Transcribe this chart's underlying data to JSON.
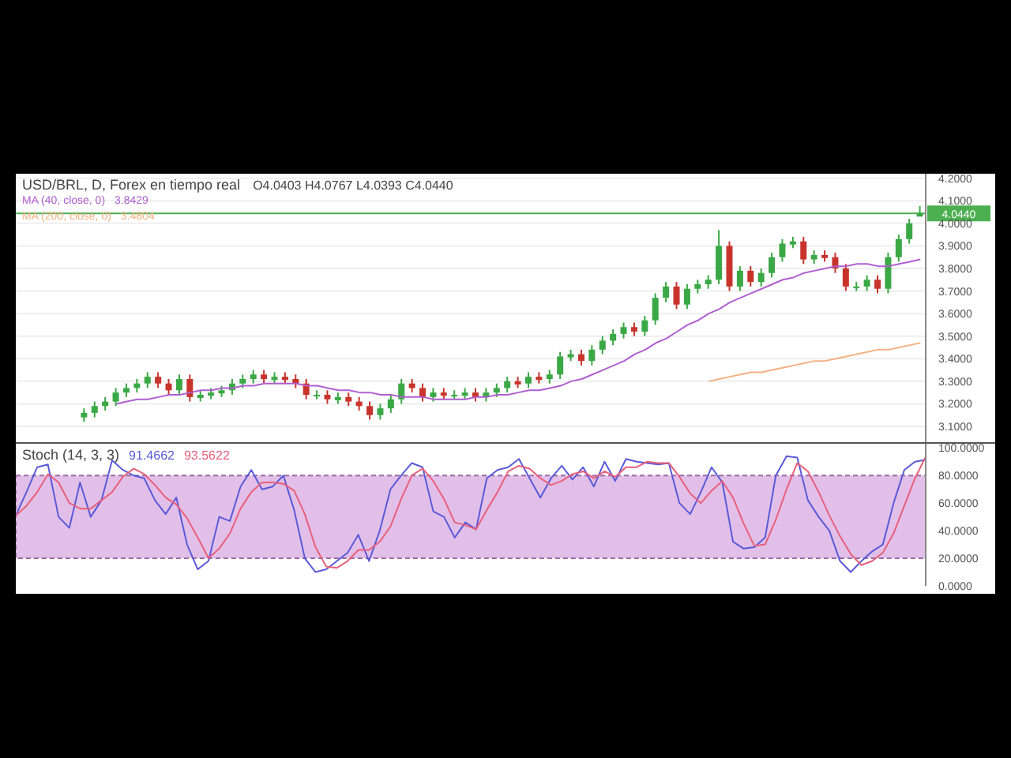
{
  "chart_data": [
    {
      "type": "candlestick",
      "title": "USD/BRL, D, Forex en tiempo real",
      "annotations": [
        "O4.0403 H4.0767 L4.0393 C4.0440",
        "3.8429",
        "3.4804"
      ],
      "categories": [
        null,
        null,
        null,
        null,
        null,
        null,
        null,
        null,
        null,
        null,
        null,
        null,
        null,
        null,
        null,
        null,
        null,
        null,
        null,
        null,
        null,
        null,
        null,
        null,
        null,
        null,
        null,
        null,
        null,
        null,
        null,
        null,
        null,
        null,
        null,
        null,
        null,
        null,
        null,
        null,
        null,
        null,
        null,
        null,
        null,
        null,
        null,
        null,
        null,
        null,
        null,
        null,
        null,
        null,
        null,
        null,
        null,
        null,
        null,
        null,
        null,
        null,
        null,
        null,
        null,
        null,
        null,
        null,
        null,
        null,
        null,
        null,
        null,
        null,
        null,
        null,
        null,
        null,
        null,
        null,
        null,
        null,
        null,
        null,
        null,
        null
      ],
      "ohlc": [
        null,
        null,
        null,
        null,
        null,
        null,
        [
          3.14,
          3.18,
          3.12,
          3.16
        ],
        [
          3.16,
          3.21,
          3.14,
          3.19
        ],
        [
          3.19,
          3.23,
          3.17,
          3.21
        ],
        [
          3.21,
          3.27,
          3.19,
          3.25
        ],
        [
          3.25,
          3.29,
          3.23,
          3.27
        ],
        [
          3.27,
          3.31,
          3.25,
          3.29
        ],
        [
          3.29,
          3.34,
          3.27,
          3.32
        ],
        [
          3.32,
          3.34,
          3.27,
          3.29
        ],
        [
          3.29,
          3.31,
          3.24,
          3.26
        ],
        [
          3.26,
          3.33,
          3.24,
          3.31
        ],
        [
          3.31,
          3.33,
          3.21,
          3.23
        ],
        [
          3.23,
          3.26,
          3.21,
          3.24
        ],
        [
          3.24,
          3.27,
          3.22,
          3.25
        ],
        [
          3.25,
          3.28,
          3.23,
          3.26
        ],
        [
          3.26,
          3.31,
          3.24,
          3.29
        ],
        [
          3.29,
          3.33,
          3.27,
          3.31
        ],
        [
          3.31,
          3.35,
          3.29,
          3.33
        ],
        [
          3.33,
          3.35,
          3.29,
          3.31
        ],
        [
          3.31,
          3.34,
          3.29,
          3.32
        ],
        [
          3.32,
          3.34,
          3.29,
          3.31
        ],
        [
          3.31,
          3.33,
          3.27,
          3.29
        ],
        [
          3.29,
          3.31,
          3.22,
          3.24
        ],
        [
          3.24,
          3.26,
          3.22,
          3.24
        ],
        [
          3.24,
          3.26,
          3.2,
          3.22
        ],
        [
          3.22,
          3.25,
          3.2,
          3.23
        ],
        [
          3.23,
          3.25,
          3.19,
          3.21
        ],
        [
          3.21,
          3.23,
          3.17,
          3.19
        ],
        [
          3.19,
          3.21,
          3.13,
          3.15
        ],
        [
          3.15,
          3.2,
          3.13,
          3.18
        ],
        [
          3.18,
          3.24,
          3.16,
          3.22
        ],
        [
          3.22,
          3.31,
          3.2,
          3.29
        ],
        [
          3.29,
          3.31,
          3.25,
          3.27
        ],
        [
          3.27,
          3.29,
          3.21,
          3.23
        ],
        [
          3.23,
          3.27,
          3.21,
          3.25
        ],
        [
          3.25,
          3.27,
          3.22,
          3.24
        ],
        [
          3.24,
          3.26,
          3.22,
          3.24
        ],
        [
          3.24,
          3.27,
          3.22,
          3.25
        ],
        [
          3.25,
          3.27,
          3.21,
          3.23
        ],
        [
          3.23,
          3.27,
          3.21,
          3.25
        ],
        [
          3.25,
          3.29,
          3.23,
          3.27
        ],
        [
          3.27,
          3.32,
          3.25,
          3.3
        ],
        [
          3.3,
          3.32,
          3.27,
          3.29
        ],
        [
          3.29,
          3.34,
          3.27,
          3.32
        ],
        [
          3.32,
          3.34,
          3.29,
          3.31
        ],
        [
          3.31,
          3.35,
          3.29,
          3.33
        ],
        [
          3.33,
          3.43,
          3.31,
          3.41
        ],
        [
          3.41,
          3.44,
          3.39,
          3.42
        ],
        [
          3.42,
          3.44,
          3.37,
          3.39
        ],
        [
          3.39,
          3.46,
          3.37,
          3.44
        ],
        [
          3.44,
          3.5,
          3.42,
          3.48
        ],
        [
          3.48,
          3.53,
          3.46,
          3.51
        ],
        [
          3.51,
          3.56,
          3.49,
          3.54
        ],
        [
          3.54,
          3.56,
          3.5,
          3.52
        ],
        [
          3.52,
          3.59,
          3.5,
          3.57
        ],
        [
          3.57,
          3.69,
          3.55,
          3.67
        ],
        [
          3.67,
          3.74,
          3.65,
          3.72
        ],
        [
          3.72,
          3.74,
          3.62,
          3.64
        ],
        [
          3.64,
          3.73,
          3.62,
          3.71
        ],
        [
          3.71,
          3.75,
          3.69,
          3.73
        ],
        [
          3.73,
          3.77,
          3.71,
          3.75
        ],
        [
          3.75,
          3.97,
          3.73,
          3.9
        ],
        [
          3.9,
          3.92,
          3.7,
          3.72
        ],
        [
          3.72,
          3.81,
          3.7,
          3.79
        ],
        [
          3.79,
          3.81,
          3.72,
          3.74
        ],
        [
          3.74,
          3.8,
          3.72,
          3.78
        ],
        [
          3.78,
          3.87,
          3.76,
          3.85
        ],
        [
          3.85,
          3.93,
          3.83,
          3.91
        ],
        [
          3.91,
          3.94,
          3.89,
          3.92
        ],
        [
          3.92,
          3.94,
          3.82,
          3.84
        ],
        [
          3.84,
          3.88,
          3.82,
          3.86
        ],
        [
          3.86,
          3.88,
          3.83,
          3.85
        ],
        [
          3.85,
          3.87,
          3.78,
          3.8
        ],
        [
          3.8,
          3.82,
          3.7,
          3.72
        ],
        [
          3.72,
          3.74,
          3.7,
          3.72
        ],
        [
          3.72,
          3.77,
          3.7,
          3.75
        ],
        [
          3.75,
          3.77,
          3.69,
          3.71
        ],
        [
          3.71,
          3.87,
          3.69,
          3.85
        ],
        [
          3.85,
          3.95,
          3.83,
          3.93
        ],
        [
          3.93,
          4.02,
          3.91,
          4.0
        ],
        [
          4.0403,
          4.0767,
          4.0393,
          4.044
        ]
      ],
      "series": [
        {
          "name": "MA (40, close, 0)",
          "type": "line",
          "color": "#b05fd0",
          "values": [
            null,
            null,
            null,
            null,
            null,
            null,
            null,
            null,
            null,
            3.2,
            3.21,
            3.22,
            3.22,
            3.23,
            3.24,
            3.24,
            3.25,
            3.26,
            3.26,
            3.27,
            3.27,
            3.28,
            3.28,
            3.29,
            3.29,
            3.29,
            3.29,
            3.28,
            3.28,
            3.27,
            3.26,
            3.26,
            3.25,
            3.25,
            3.24,
            3.24,
            3.23,
            3.23,
            3.23,
            3.22,
            3.22,
            3.22,
            3.22,
            3.23,
            3.23,
            3.24,
            3.24,
            3.25,
            3.26,
            3.26,
            3.27,
            3.28,
            3.3,
            3.31,
            3.33,
            3.35,
            3.37,
            3.39,
            3.42,
            3.44,
            3.47,
            3.49,
            3.52,
            3.55,
            3.57,
            3.6,
            3.62,
            3.65,
            3.67,
            3.69,
            3.71,
            3.73,
            3.75,
            3.76,
            3.78,
            3.79,
            3.8,
            3.81,
            3.81,
            3.82,
            3.82,
            3.81,
            3.81,
            3.82,
            3.83,
            3.84
          ]
        },
        {
          "name": "MA (200, close, 0)",
          "type": "line",
          "color": "#f4b183",
          "values": [
            null,
            null,
            null,
            null,
            null,
            null,
            null,
            null,
            null,
            null,
            null,
            null,
            null,
            null,
            null,
            null,
            null,
            null,
            null,
            null,
            null,
            null,
            null,
            null,
            null,
            null,
            null,
            null,
            null,
            null,
            null,
            null,
            null,
            null,
            null,
            null,
            null,
            null,
            null,
            null,
            null,
            null,
            null,
            null,
            null,
            null,
            null,
            null,
            null,
            null,
            null,
            null,
            null,
            null,
            null,
            null,
            null,
            null,
            null,
            null,
            null,
            null,
            null,
            null,
            null,
            3.3,
            3.31,
            3.32,
            3.33,
            3.34,
            3.34,
            3.35,
            3.36,
            3.37,
            3.38,
            3.39,
            3.39,
            3.4,
            3.41,
            3.42,
            3.43,
            3.44,
            3.44,
            3.45,
            3.46,
            3.47
          ]
        }
      ],
      "ylim": [
        3.03,
        4.22
      ],
      "yticks": [
        {
          "value": 3.1,
          "label": "3.1000"
        },
        {
          "value": 3.2,
          "label": "3.2000"
        },
        {
          "value": 3.3,
          "label": "3.3000"
        },
        {
          "value": 3.4,
          "label": "3.4000"
        },
        {
          "value": 3.5,
          "label": "3.5000"
        },
        {
          "value": 3.6,
          "label": "3.6000"
        },
        {
          "value": 3.7,
          "label": "3.7000"
        },
        {
          "value": 3.8,
          "label": "3.8000"
        },
        {
          "value": 3.9,
          "label": "3.9000"
        },
        {
          "value": 4.0,
          "label": "4.0000"
        },
        {
          "value": 4.1,
          "label": "4.1000"
        },
        {
          "value": 4.2,
          "label": "4.2000"
        }
      ],
      "ref_lines": [
        {
          "axis": "y",
          "value": 4.044,
          "label": "4.0440",
          "color": "#4caf50"
        }
      ],
      "grid": "y",
      "legend": "top left"
    },
    {
      "type": "line",
      "title": "Stoch (14, 3, 3)",
      "annotations": [
        "91.4662",
        "93.5622"
      ],
      "categories": [
        null,
        null,
        null,
        null,
        null,
        null,
        null,
        null,
        null,
        null,
        null,
        null,
        null,
        null,
        null,
        null,
        null,
        null,
        null,
        null,
        null,
        null,
        null,
        null,
        null,
        null,
        null,
        null,
        null,
        null,
        null,
        null,
        null,
        null,
        null,
        null,
        null,
        null,
        null,
        null,
        null,
        null,
        null,
        null,
        null,
        null,
        null,
        null,
        null,
        null,
        null,
        null,
        null,
        null,
        null,
        null,
        null,
        null,
        null,
        null,
        null,
        null,
        null,
        null,
        null,
        null,
        null,
        null,
        null,
        null,
        null,
        null,
        null,
        null,
        null,
        null,
        null,
        null,
        null,
        null,
        null,
        null,
        null,
        null,
        null,
        null
      ],
      "series": [
        {
          "color": "#5a5ad8",
          "values": [
            51,
            68,
            86,
            88,
            50,
            42,
            75,
            50,
            62,
            91,
            84,
            80,
            78,
            62,
            52,
            64,
            30,
            12,
            18,
            50,
            47,
            72,
            84,
            70,
            72,
            80,
            55,
            20,
            10,
            12,
            18,
            24,
            37,
            18,
            40,
            70,
            80,
            89,
            86,
            54,
            50,
            35,
            46,
            41,
            78,
            84,
            86,
            92,
            78,
            64,
            78,
            87,
            77,
            86,
            72,
            90,
            76,
            92,
            90,
            89,
            88,
            89,
            60,
            52,
            68,
            86,
            75,
            32,
            27,
            28,
            35,
            80,
            94,
            93,
            62,
            50,
            40,
            18,
            10,
            18,
            25,
            30,
            60,
            84,
            90,
            91.4662
          ]
        },
        {
          "color": "#e8607a",
          "values": [
            51,
            58,
            68,
            81,
            75,
            60,
            56,
            56,
            62,
            68,
            79,
            85,
            81,
            73,
            64,
            59,
            49,
            35,
            20,
            27,
            38,
            56,
            68,
            75,
            75,
            74,
            69,
            52,
            28,
            14,
            13,
            18,
            26,
            26,
            32,
            43,
            63,
            80,
            85,
            76,
            63,
            46,
            44,
            41,
            55,
            68,
            83,
            87,
            85,
            78,
            73,
            76,
            81,
            83,
            78,
            83,
            79,
            86,
            86,
            90,
            89,
            89,
            79,
            67,
            60,
            69,
            76,
            64,
            45,
            29,
            30,
            48,
            70,
            89,
            83,
            68,
            51,
            36,
            23,
            15,
            18,
            24,
            38,
            58,
            78,
            93.5622
          ]
        }
      ],
      "ylim": [
        0,
        103
      ],
      "yticks": [
        {
          "value": 0,
          "label": "0.0000"
        },
        {
          "value": 20,
          "label": "20.0000"
        },
        {
          "value": 40,
          "label": "40.0000"
        },
        {
          "value": 60,
          "label": "60.0000"
        },
        {
          "value": 80,
          "label": "80.0000"
        },
        {
          "value": 100,
          "label": "100.0000"
        }
      ],
      "bands": [
        {
          "axis": "y",
          "from": 20,
          "to": 80,
          "color": "#d8a9e0"
        }
      ]
    }
  ]
}
